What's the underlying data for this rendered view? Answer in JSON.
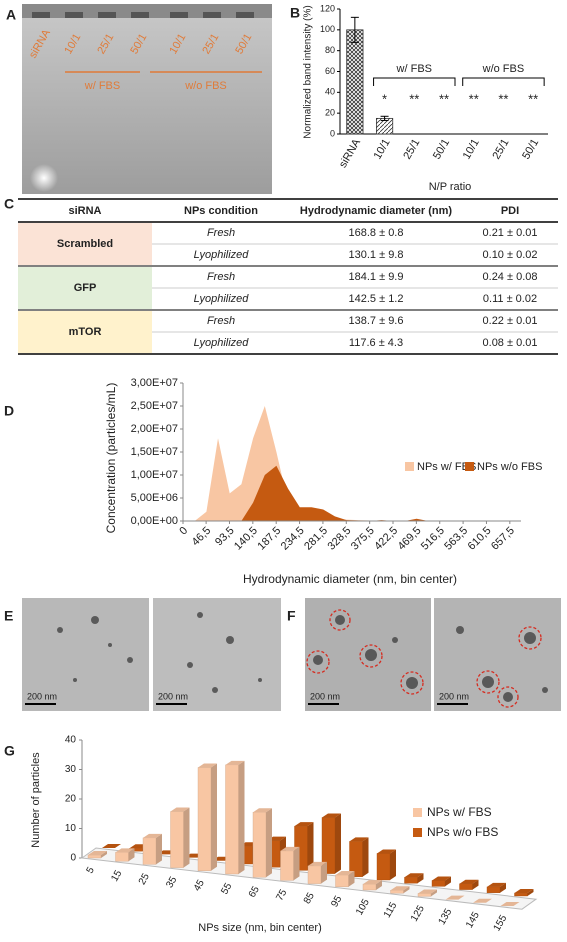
{
  "panels": [
    "A",
    "B",
    "C",
    "D",
    "E",
    "F",
    "G"
  ],
  "gel": {
    "lanes": [
      "siRNA",
      "10/1",
      "25/1",
      "50/1",
      "10/1",
      "25/1",
      "50/1"
    ],
    "groups": [
      "w/ FBS",
      "w/o FBS"
    ]
  },
  "micrographs": {
    "scale_bars": [
      "200 nm",
      "200 nm",
      "200 nm",
      "200 nm"
    ]
  },
  "table": {
    "header": [
      "siRNA",
      "NPs condition",
      "Hydrodynamic diameter (nm)",
      "PDI"
    ],
    "groups": [
      {
        "name": "Scrambled",
        "color": "#fbe3d6",
        "rows": [
          [
            "Fresh",
            "168.8 ± 0.8",
            "0.21 ± 0.01"
          ],
          [
            "Lyophilized",
            "130.1 ± 9.8",
            "0.10 ± 0.02"
          ]
        ]
      },
      {
        "name": "GFP",
        "color": "#e2efd9",
        "rows": [
          [
            "Fresh",
            "184.1 ± 9.9",
            "0.24 ± 0.08"
          ],
          [
            "Lyophilized",
            "142.5 ± 1.2",
            "0.11 ± 0.02"
          ]
        ]
      },
      {
        "name": "mTOR",
        "color": "#fff2cc",
        "rows": [
          [
            "Fresh",
            "138.7 ± 9.6",
            "0.22 ± 0.01"
          ],
          [
            "Lyophilized",
            "117.6 ± 4.3",
            "0.08 ± 0.01"
          ]
        ]
      }
    ]
  },
  "chart_data": [
    {
      "type": "bar",
      "y_label": "Normalized band intensity (%)",
      "x_label": "N/P ratio",
      "categories": [
        "siRNA",
        "10/1",
        "25/1",
        "50/1",
        "10/1",
        "25/1",
        "50/1"
      ],
      "values": [
        100,
        15,
        0,
        0,
        0,
        0,
        0
      ],
      "errors": [
        12,
        2,
        null,
        null,
        null,
        null,
        null
      ],
      "significance": [
        null,
        "*",
        "**",
        "**",
        "**",
        "**",
        "**"
      ],
      "groups": [
        "w/ FBS",
        "w/o FBS"
      ],
      "patterns": [
        "crosshatch",
        "diagonal",
        "diagonal",
        "diagonal",
        "diagonal",
        "diagonal",
        "diagonal"
      ],
      "ylim": [
        0,
        120
      ],
      "yticks": [
        0,
        20,
        40,
        60,
        80,
        100,
        120
      ]
    },
    {
      "type": "area",
      "y_label": "Concentration (particles/mL)",
      "x_label": "Hydrodynamic diameter (nm, bin center)",
      "x": [
        0,
        23.5,
        47,
        70.5,
        94,
        117.5,
        141,
        164.5,
        188,
        211.5,
        235,
        258.5,
        282,
        305.5,
        329,
        352.5,
        376,
        399.5,
        423,
        446.5,
        470,
        493.5,
        517,
        540.5,
        564,
        587.5,
        611,
        634.5,
        658
      ],
      "series": [
        {
          "name": "NPs w/ FBS",
          "color": "#f8c6a3",
          "values": [
            0,
            0,
            2000000,
            18000000,
            6000000,
            8000000,
            18000000,
            25000000,
            15000000,
            4000000,
            1500000,
            1200000,
            1000000,
            500000,
            300000,
            200000,
            100000,
            0,
            0,
            0,
            0,
            0,
            0,
            0,
            0,
            0,
            0,
            0,
            0
          ]
        },
        {
          "name": "NPs w/o FBS",
          "color": "#c55a11",
          "values": [
            0,
            0,
            0,
            0,
            0,
            0,
            4000000,
            10000000,
            12000000,
            7000000,
            3000000,
            3000000,
            2500000,
            1000000,
            200000,
            100000,
            0,
            200000,
            0,
            0,
            500000,
            0,
            0,
            0,
            0,
            0,
            0,
            0,
            0
          ]
        }
      ],
      "xlim": [
        0,
        680
      ],
      "xticks": [
        0,
        {
          "value": 46.5,
          "label": "46,5"
        },
        {
          "value": 93.5,
          "label": "93,5"
        },
        {
          "value": 140.5,
          "label": "140,5"
        },
        {
          "value": 187.5,
          "label": "187,5"
        },
        {
          "value": 234.5,
          "label": "234,5"
        },
        {
          "value": 281.5,
          "label": "281,5"
        },
        {
          "value": 328.5,
          "label": "328,5"
        },
        {
          "value": 375.5,
          "label": "375,5"
        },
        {
          "value": 422.5,
          "label": "422,5"
        },
        {
          "value": 469.5,
          "label": "469,5"
        },
        {
          "value": 516.5,
          "label": "516,5"
        },
        {
          "value": 563.5,
          "label": "563,5"
        },
        {
          "value": 610.5,
          "label": "610,5"
        },
        {
          "value": 657.5,
          "label": "657,5"
        }
      ],
      "ylim": [
        0,
        30000000
      ],
      "yticks": [
        {
          "value": 0,
          "label": "0,00E+00"
        },
        {
          "value": 5000000,
          "label": "5,00E+06"
        },
        {
          "value": 10000000,
          "label": "1,00E+07"
        },
        {
          "value": 15000000,
          "label": "1,50E+07"
        },
        {
          "value": 20000000,
          "label": "2,00E+07"
        },
        {
          "value": 25000000,
          "label": "2,50E+07"
        },
        {
          "value": 30000000,
          "label": "3,00E+07"
        }
      ],
      "legend": "upper right"
    },
    {
      "type": "bar3d",
      "y_label": "Number of particles",
      "x_label": "NPs size (nm, bin center)",
      "categories": [
        "5",
        "15",
        "25",
        "35",
        "45",
        "55",
        "65",
        "75",
        "85",
        "95",
        "105",
        "115",
        "125",
        "135",
        "145",
        "155"
      ],
      "series": [
        {
          "name": "NPs w/ FBS",
          "color": "#f8c6a3",
          "values": [
            1,
            3,
            9,
            19,
            35,
            37,
            22,
            10,
            6,
            4,
            2,
            1,
            1,
            0,
            0,
            0
          ]
        },
        {
          "name": "NPs w/o FBS",
          "color": "#c55a11",
          "values": [
            0,
            1,
            0,
            0,
            0,
            6,
            9,
            15,
            19,
            12,
            9,
            2,
            2,
            2,
            2,
            1
          ]
        }
      ],
      "ylim": [
        0,
        40
      ],
      "yticks": [
        0,
        10,
        20,
        30,
        40
      ],
      "legend": "right"
    }
  ]
}
